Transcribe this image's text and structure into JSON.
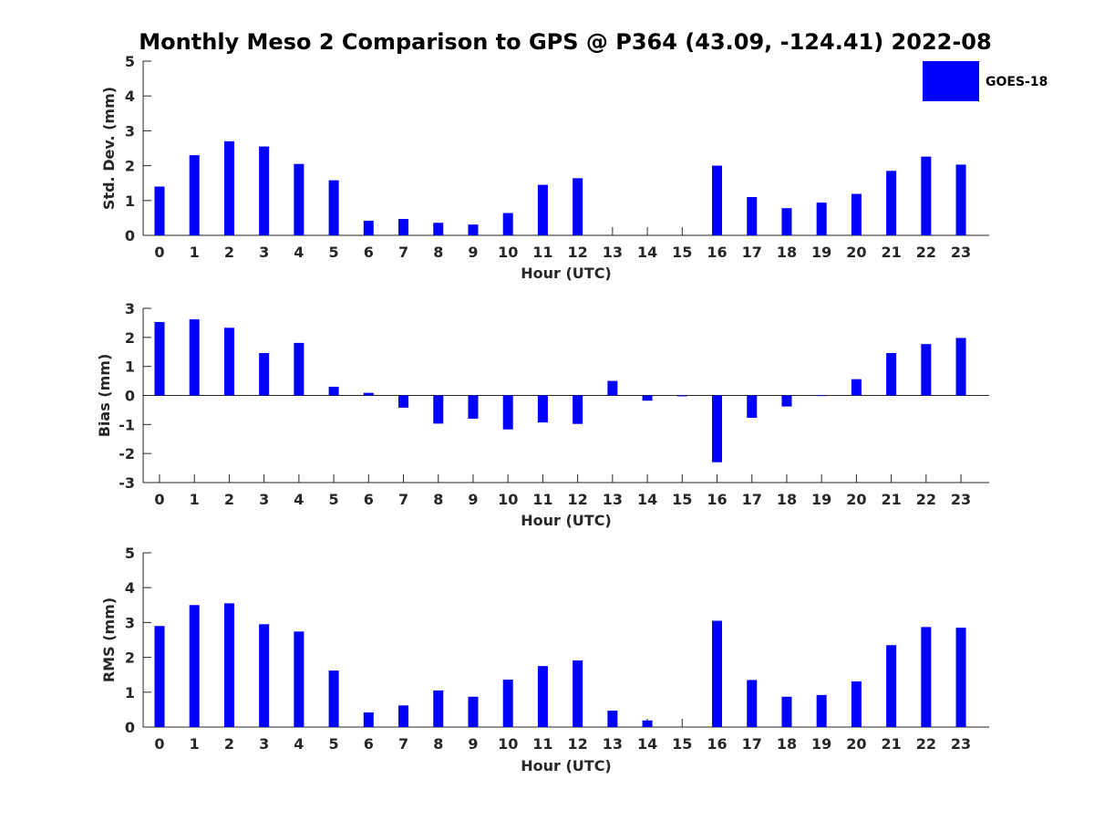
{
  "chart_data": [
    {
      "type": "bar",
      "title": "Monthly Meso 2 Comparison to GPS @ P364 (43.09, -124.41) 2022-08",
      "xlabel": "Hour (UTC)",
      "ylabel": "Std. Dev. (mm)",
      "ylim": [
        0,
        5
      ],
      "yticks": [
        0,
        1,
        2,
        3,
        4,
        5
      ],
      "categories": [
        "0",
        "1",
        "2",
        "3",
        "4",
        "5",
        "6",
        "7",
        "8",
        "9",
        "10",
        "11",
        "12",
        "13",
        "14",
        "15",
        "16",
        "17",
        "18",
        "19",
        "20",
        "21",
        "22",
        "23"
      ],
      "series": [
        {
          "name": "GOES-18",
          "color": "#0000ff",
          "values": [
            1.4,
            2.3,
            2.7,
            2.55,
            2.05,
            1.58,
            0.42,
            0.47,
            0.36,
            0.31,
            0.64,
            1.45,
            1.64,
            0.0,
            0.0,
            0.0,
            2.0,
            1.1,
            0.78,
            0.94,
            1.19,
            1.85,
            2.26,
            2.03
          ]
        }
      ],
      "legend": {
        "entries": [
          "GOES-18"
        ],
        "placement": "top-right"
      }
    },
    {
      "type": "bar",
      "xlabel": "Hour (UTC)",
      "ylabel": "Bias (mm)",
      "ylim": [
        -3,
        3
      ],
      "yticks": [
        -3,
        -2,
        -1,
        0,
        1,
        2,
        3
      ],
      "categories": [
        "0",
        "1",
        "2",
        "3",
        "4",
        "5",
        "6",
        "7",
        "8",
        "9",
        "10",
        "11",
        "12",
        "13",
        "14",
        "15",
        "16",
        "17",
        "18",
        "19",
        "20",
        "21",
        "22",
        "23"
      ],
      "series": [
        {
          "name": "GOES-18",
          "color": "#0000ff",
          "values": [
            2.53,
            2.62,
            2.33,
            1.46,
            1.81,
            0.3,
            0.09,
            -0.42,
            -0.97,
            -0.8,
            -1.17,
            -0.93,
            -0.98,
            0.5,
            -0.18,
            -0.03,
            -2.3,
            -0.77,
            -0.38,
            -0.02,
            0.56,
            1.46,
            1.77,
            1.98
          ]
        }
      ]
    },
    {
      "type": "bar",
      "xlabel": "Hour (UTC)",
      "ylabel": "RMS (mm)",
      "ylim": [
        0,
        5
      ],
      "yticks": [
        0,
        1,
        2,
        3,
        4,
        5
      ],
      "categories": [
        "0",
        "1",
        "2",
        "3",
        "4",
        "5",
        "6",
        "7",
        "8",
        "9",
        "10",
        "11",
        "12",
        "13",
        "14",
        "15",
        "16",
        "17",
        "18",
        "19",
        "20",
        "21",
        "22",
        "23"
      ],
      "series": [
        {
          "name": "GOES-18",
          "color": "#0000ff",
          "values": [
            2.9,
            3.5,
            3.55,
            2.95,
            2.74,
            1.62,
            0.42,
            0.62,
            1.05,
            0.87,
            1.36,
            1.75,
            1.91,
            0.47,
            0.19,
            0.0,
            3.05,
            1.35,
            0.87,
            0.92,
            1.31,
            2.35,
            2.87,
            2.85
          ]
        }
      ]
    }
  ]
}
